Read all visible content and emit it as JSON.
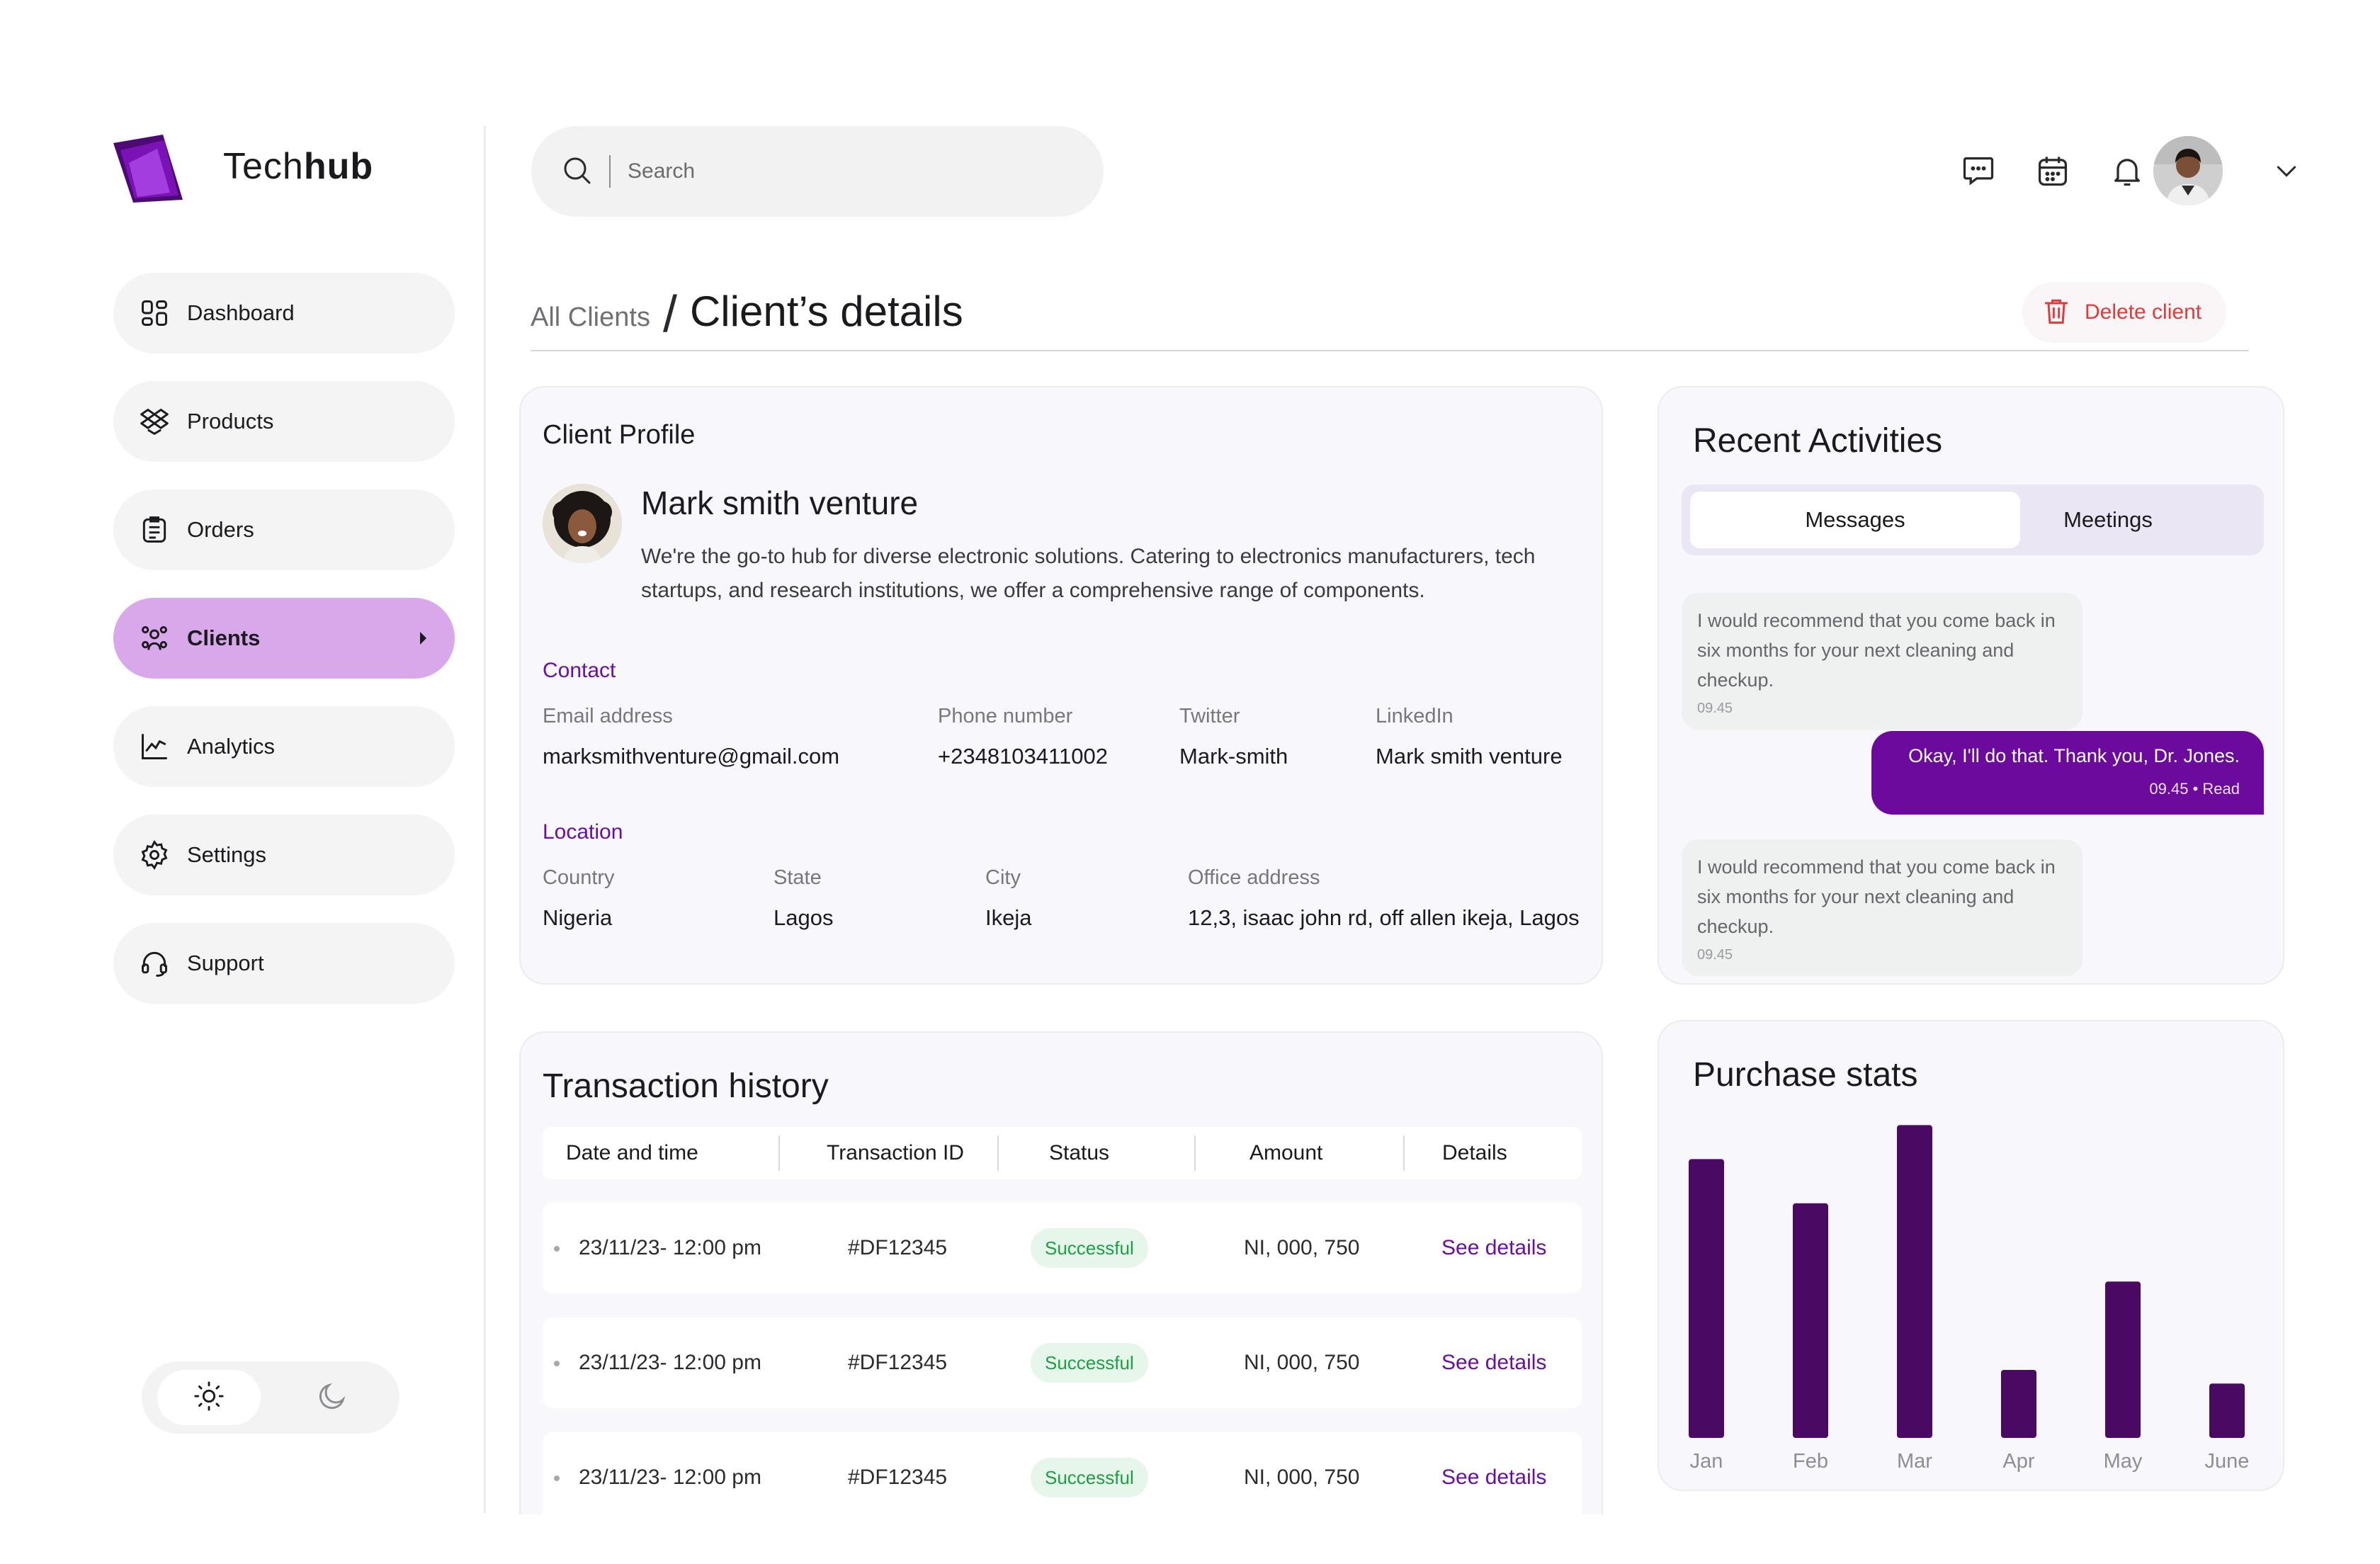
{
  "brand": {
    "name_light": "Tech",
    "name_bold": "hub",
    "logo_color": "#7a12b6"
  },
  "sidebar": {
    "items": [
      {
        "label": "Dashboard",
        "icon": "grid-icon",
        "active": false
      },
      {
        "label": "Products",
        "icon": "dropbox-icon",
        "active": false
      },
      {
        "label": "Orders",
        "icon": "clipboard-icon",
        "active": false
      },
      {
        "label": "Clients",
        "icon": "users-icon",
        "active": true
      },
      {
        "label": "Analytics",
        "icon": "chart-line-icon",
        "active": false
      },
      {
        "label": "Settings",
        "icon": "gear-icon",
        "active": false
      },
      {
        "label": "Support",
        "icon": "headset-icon",
        "active": false
      }
    ],
    "theme_toggle": {
      "selected": "light"
    }
  },
  "search": {
    "placeholder": "Search"
  },
  "header": {
    "breadcrumb_parent": "All Clients",
    "breadcrumb_current": "Client’s details",
    "delete_label": "Delete client"
  },
  "profile": {
    "title": "Client Profile",
    "name": "Mark smith venture",
    "description": "We're the go-to hub for diverse electronic solutions. Catering to electronics manufacturers, tech startups, and research institutions, we offer a comprehensive range of components.",
    "contact": {
      "heading": "Contact",
      "email_label": "Email address",
      "email": "marksmithventure@gmail.com",
      "phone_label": "Phone number",
      "phone": "+2348103411002",
      "twitter_label": "Twitter",
      "twitter": "Mark-smith",
      "linkedin_label": "LinkedIn",
      "linkedin": "Mark smith venture"
    },
    "location": {
      "heading": "Location",
      "country_label": "Country",
      "country": "Nigeria",
      "state_label": "State",
      "state": "Lagos",
      "city_label": "City",
      "city": "Ikeja",
      "office_label": "Office address",
      "office": "12,3, isaac john rd, off allen ikeja, Lagos"
    }
  },
  "activities": {
    "title": "Recent Activities",
    "tabs": [
      "Messages",
      "Meetings"
    ],
    "messages": [
      {
        "direction": "in",
        "text": "I would recommend that you come back in six months for your next cleaning and checkup.",
        "time": "09.45"
      },
      {
        "direction": "out",
        "text": "Okay, I'll do that. Thank you, Dr. Jones.",
        "time": "09.45 • Read"
      },
      {
        "direction": "in",
        "text": "I would recommend that you come back in six months for your next cleaning and checkup.",
        "time": "09.45"
      }
    ]
  },
  "transactions": {
    "title": "Transaction history",
    "columns": [
      "Date and time",
      "Transaction ID",
      "Status",
      "Amount",
      "Details"
    ],
    "rows": [
      {
        "date": "23/11/23- 12:00 pm",
        "id": "#DF12345",
        "status": "Successful",
        "amount": "NI, 000, 750",
        "details": "See details"
      },
      {
        "date": "23/11/23- 12:00 pm",
        "id": "#DF12345",
        "status": "Successful",
        "amount": "NI, 000, 750",
        "details": "See details"
      },
      {
        "date": "23/11/23- 12:00 pm",
        "id": "#DF12345",
        "status": "Successful",
        "amount": "NI, 000, 750",
        "details": "See details"
      }
    ]
  },
  "stats": {
    "title": "Purchase stats"
  },
  "chart_data": {
    "type": "bar",
    "categories": [
      "Jan",
      "Feb",
      "Mar",
      "Apr",
      "May",
      "June"
    ],
    "values": [
      82,
      69,
      92,
      20,
      46,
      16
    ],
    "ylim": [
      0,
      100
    ],
    "grid": false,
    "color": "#4a0a63"
  },
  "colors": {
    "accent": "#6a0fa0",
    "active_nav": "#d9a8ea",
    "danger": "#e03a3a",
    "success": "#1e9e45"
  }
}
